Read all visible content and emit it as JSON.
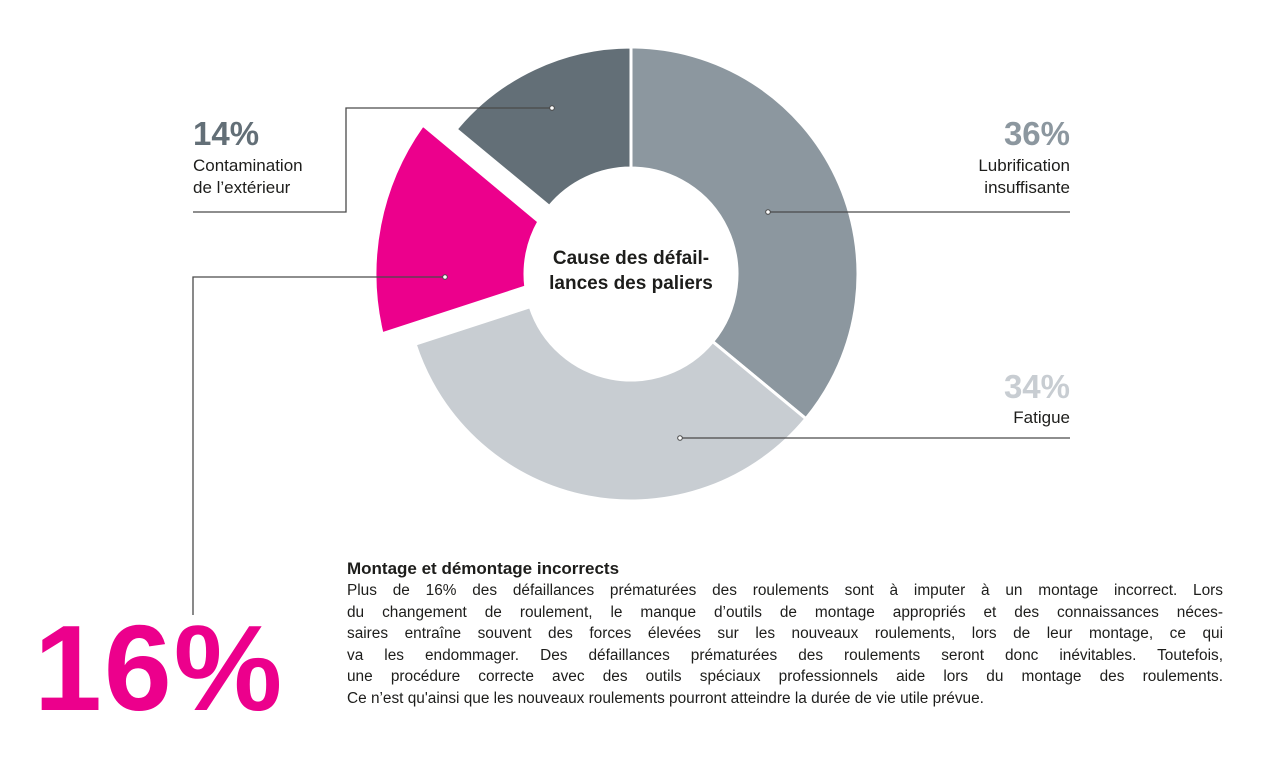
{
  "chart_data": {
    "type": "pie",
    "title": "Cause des défail-\nlances des paliers",
    "title_lines": [
      "Cause des défail-",
      "lances des paliers"
    ],
    "slices": [
      {
        "label": "Lubrification insuffisante",
        "label_lines": [
          "Lubrification",
          "insuffisante"
        ],
        "value": 36,
        "value_label": "36%",
        "color": "#8c979f"
      },
      {
        "label": "Fatigue",
        "label_lines": [
          "Fatigue"
        ],
        "value": 34,
        "value_label": "34%",
        "color": "#c8cdd2"
      },
      {
        "label": "Montage et démontage incorrects",
        "label_lines": [],
        "value": 16,
        "value_label": "16%",
        "color": "#ec008c",
        "exploded": true
      },
      {
        "label": "Contamination de l’extérieur",
        "label_lines": [
          "Contamination",
          "de l’extérieur"
        ],
        "value": 14,
        "value_label": "14%",
        "color": "#636f77"
      }
    ]
  },
  "callout": {
    "big_value": "16%",
    "heading": "Montage et démontage incorrects",
    "lines": [
      "Plus de 16% des défaillances prématurées des roulements sont à imputer à un montage incorrect. Lors",
      "du changement de roulement, le manque d’outils de montage appropriés et des connaissances néces-",
      "saires entraîne souvent des forces élevées sur les nouveaux roulements, lors de leur montage, ce qui",
      "va les endommager. Des défaillances prématurées des roulements seront donc inévitables. Toutefois,",
      "une procédure correcte avec des outils spéciaux professionnels aide lors du montage des roulements.",
      "Ce n’est qu'ainsi que les nouveaux roulements pourront atteindre la durée de vie utile prévue."
    ]
  }
}
